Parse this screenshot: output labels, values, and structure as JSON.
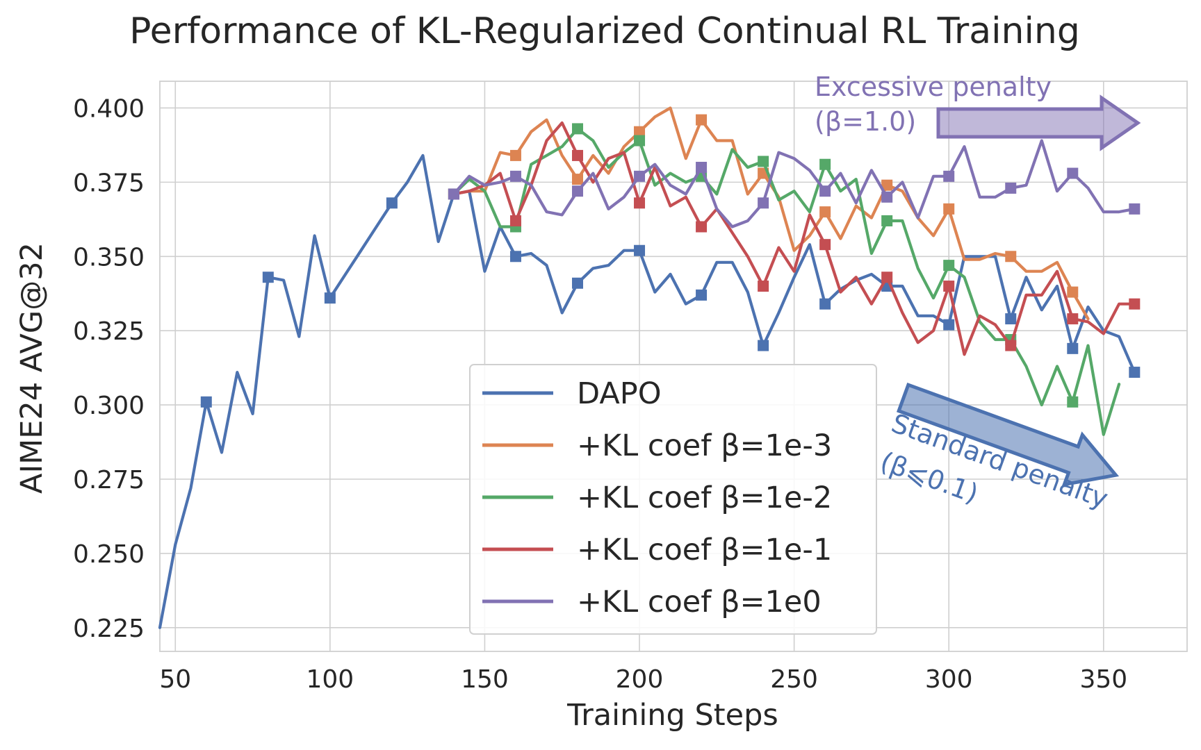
{
  "chart_data": {
    "type": "line",
    "title": "Performance of KL-Regularized Continual RL Training",
    "xlabel": "Training Steps",
    "ylabel": "AIME24 AVG@32",
    "xlim": [
      45,
      377
    ],
    "ylim": [
      0.217,
      0.409
    ],
    "xticks": [
      50,
      100,
      150,
      200,
      250,
      300,
      350
    ],
    "xtick_labels": [
      "50",
      "100",
      "150",
      "200",
      "250",
      "300",
      "350"
    ],
    "yticks": [
      0.225,
      0.25,
      0.275,
      0.3,
      0.325,
      0.35,
      0.375,
      0.4
    ],
    "ytick_labels": [
      "0.225",
      "0.250",
      "0.275",
      "0.300",
      "0.325",
      "0.350",
      "0.375",
      "0.400"
    ],
    "grid": true,
    "legend_position": "center-right (lower half)",
    "series": [
      {
        "name": "DAPO",
        "color": "#4c72b0",
        "x": [
          45,
          50,
          55,
          60,
          65,
          70,
          75,
          80,
          85,
          90,
          95,
          100,
          105,
          110,
          115,
          120,
          125,
          130,
          135,
          140,
          145,
          150,
          155,
          160,
          165,
          170,
          175,
          180,
          185,
          190,
          195,
          200,
          205,
          210,
          215,
          220,
          225,
          230,
          235,
          240,
          245,
          250,
          255,
          260,
          265,
          270,
          275,
          280,
          285,
          290,
          295,
          300,
          305,
          310,
          315,
          320,
          325,
          330,
          335,
          340,
          345,
          350,
          355,
          360
        ],
        "y": [
          0.225,
          0.253,
          0.272,
          0.301,
          0.284,
          0.311,
          0.297,
          0.343,
          0.342,
          0.323,
          0.357,
          0.336,
          0.344,
          0.352,
          0.36,
          0.368,
          0.375,
          0.384,
          0.355,
          0.371,
          0.372,
          0.345,
          0.36,
          0.35,
          0.351,
          0.347,
          0.331,
          0.341,
          0.346,
          0.347,
          0.352,
          0.352,
          0.338,
          0.344,
          0.334,
          0.337,
          0.348,
          0.348,
          0.338,
          0.32,
          0.331,
          0.343,
          0.354,
          0.334,
          0.339,
          0.342,
          0.344,
          0.34,
          0.34,
          0.33,
          0.33,
          0.327,
          0.35,
          0.35,
          0.35,
          0.329,
          0.343,
          0.332,
          0.34,
          0.319,
          0.333,
          0.325,
          0.323,
          0.311
        ],
        "marker_x": [
          60,
          80,
          100,
          120,
          140,
          160,
          180,
          200,
          220,
          240,
          260,
          280,
          300,
          320,
          340,
          360
        ]
      },
      {
        "name": "+KL coef β=1e-3",
        "color": "#dd8452",
        "x": [
          140,
          145,
          150,
          155,
          160,
          165,
          170,
          175,
          180,
          185,
          190,
          195,
          200,
          205,
          210,
          215,
          220,
          225,
          230,
          235,
          240,
          245,
          250,
          255,
          260,
          265,
          270,
          275,
          280,
          285,
          290,
          295,
          300,
          305,
          310,
          315,
          320,
          325,
          330,
          335,
          340,
          345
        ],
        "y": [
          0.371,
          0.372,
          0.372,
          0.385,
          0.384,
          0.392,
          0.396,
          0.384,
          0.376,
          0.384,
          0.378,
          0.387,
          0.392,
          0.397,
          0.4,
          0.383,
          0.396,
          0.389,
          0.389,
          0.371,
          0.378,
          0.37,
          0.352,
          0.357,
          0.365,
          0.356,
          0.367,
          0.363,
          0.374,
          0.372,
          0.363,
          0.357,
          0.366,
          0.349,
          0.349,
          0.351,
          0.35,
          0.345,
          0.345,
          0.348,
          0.338,
          0.329
        ],
        "marker_x": [
          140,
          160,
          180,
          200,
          220,
          240,
          260,
          280,
          300,
          320,
          340
        ]
      },
      {
        "name": "+KL coef β=1e-2",
        "color": "#55a868",
        "x": [
          140,
          145,
          150,
          155,
          160,
          165,
          170,
          175,
          180,
          185,
          190,
          195,
          200,
          205,
          210,
          215,
          220,
          225,
          230,
          235,
          240,
          245,
          250,
          255,
          260,
          265,
          270,
          275,
          280,
          285,
          290,
          295,
          300,
          305,
          310,
          315,
          320,
          325,
          330,
          335,
          340,
          345,
          350,
          355
        ],
        "y": [
          0.371,
          0.376,
          0.372,
          0.36,
          0.36,
          0.381,
          0.384,
          0.387,
          0.393,
          0.389,
          0.38,
          0.385,
          0.389,
          0.374,
          0.378,
          0.375,
          0.377,
          0.371,
          0.386,
          0.38,
          0.382,
          0.369,
          0.372,
          0.365,
          0.381,
          0.372,
          0.376,
          0.351,
          0.362,
          0.362,
          0.346,
          0.336,
          0.347,
          0.343,
          0.328,
          0.322,
          0.322,
          0.313,
          0.3,
          0.313,
          0.301,
          0.32,
          0.29,
          0.307
        ],
        "marker_x": [
          140,
          160,
          180,
          200,
          220,
          240,
          260,
          280,
          300,
          320,
          340
        ]
      },
      {
        "name": "+KL coef β=1e-1",
        "color": "#c44e52",
        "x": [
          140,
          145,
          150,
          155,
          160,
          165,
          170,
          175,
          180,
          185,
          190,
          195,
          200,
          205,
          210,
          215,
          220,
          225,
          230,
          235,
          240,
          245,
          250,
          255,
          260,
          265,
          270,
          275,
          280,
          285,
          290,
          295,
          300,
          305,
          310,
          315,
          320,
          325,
          330,
          335,
          340,
          345,
          350,
          355,
          360
        ],
        "y": [
          0.371,
          0.372,
          0.374,
          0.378,
          0.362,
          0.374,
          0.389,
          0.395,
          0.384,
          0.375,
          0.383,
          0.385,
          0.368,
          0.38,
          0.367,
          0.37,
          0.36,
          0.366,
          0.358,
          0.35,
          0.34,
          0.353,
          0.345,
          0.364,
          0.354,
          0.338,
          0.343,
          0.334,
          0.343,
          0.331,
          0.321,
          0.325,
          0.34,
          0.317,
          0.33,
          0.327,
          0.32,
          0.337,
          0.337,
          0.345,
          0.329,
          0.328,
          0.324,
          0.334,
          0.334
        ],
        "marker_x": [
          140,
          160,
          180,
          200,
          220,
          240,
          260,
          280,
          300,
          320,
          340,
          360
        ]
      },
      {
        "name": "+KL coef β=1e0",
        "color": "#8172b3",
        "x": [
          140,
          145,
          150,
          155,
          160,
          165,
          170,
          175,
          180,
          185,
          190,
          195,
          200,
          205,
          210,
          215,
          220,
          225,
          230,
          235,
          240,
          245,
          250,
          255,
          260,
          265,
          270,
          275,
          280,
          285,
          290,
          295,
          300,
          305,
          310,
          315,
          320,
          325,
          330,
          335,
          340,
          345,
          350,
          355,
          360
        ],
        "y": [
          0.371,
          0.377,
          0.374,
          0.375,
          0.377,
          0.374,
          0.365,
          0.364,
          0.372,
          0.378,
          0.366,
          0.37,
          0.377,
          0.381,
          0.374,
          0.371,
          0.38,
          0.366,
          0.36,
          0.362,
          0.368,
          0.385,
          0.383,
          0.379,
          0.372,
          0.378,
          0.368,
          0.379,
          0.37,
          0.375,
          0.363,
          0.377,
          0.377,
          0.387,
          0.37,
          0.37,
          0.373,
          0.374,
          0.389,
          0.372,
          0.378,
          0.373,
          0.365,
          0.365,
          0.366
        ],
        "marker_x": [
          140,
          160,
          180,
          200,
          220,
          240,
          260,
          280,
          300,
          320,
          340,
          360
        ]
      }
    ],
    "annotations": [
      {
        "line1": "Excessive penalty",
        "line2": "(β=1.0)",
        "color": "#8172b3"
      },
      {
        "line1": "Standard penalty",
        "line2": "(β⩽0.1)",
        "color": "#4c72b0"
      }
    ]
  }
}
